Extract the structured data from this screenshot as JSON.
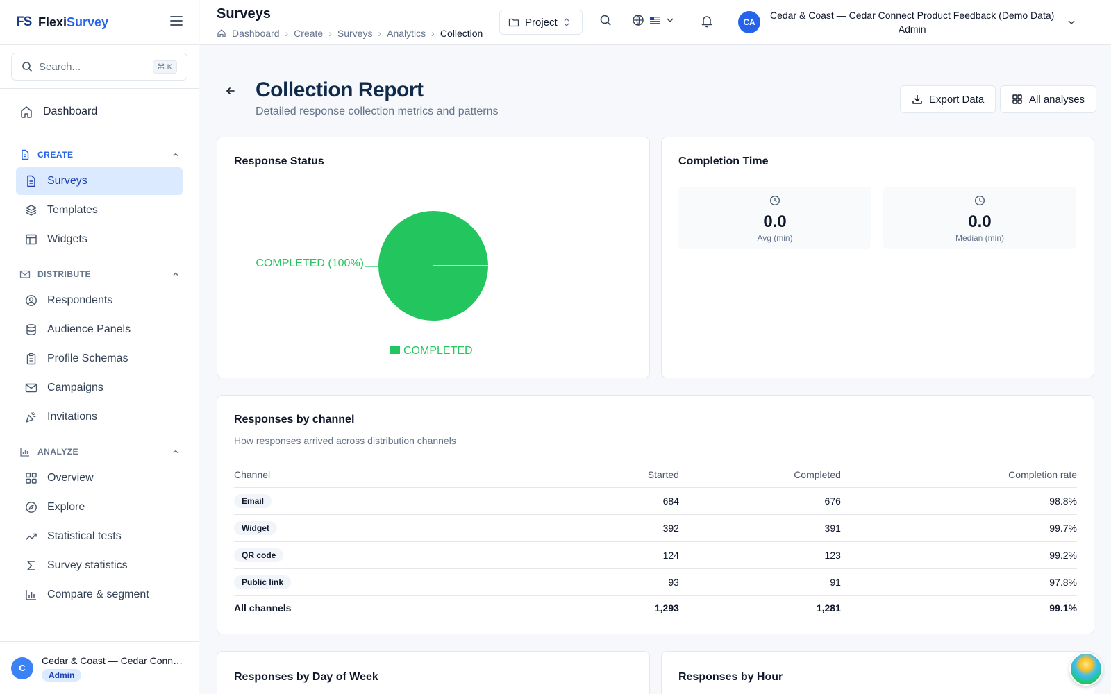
{
  "brand": {
    "logo": "FS",
    "name_a": "Flexi",
    "name_b": "Survey"
  },
  "search": {
    "placeholder": "Search...",
    "shortcut": "⌘ K"
  },
  "sidebar": {
    "dashboard": "Dashboard",
    "sections": [
      {
        "title": "CREATE",
        "items": [
          "Surveys",
          "Templates",
          "Widgets"
        ]
      },
      {
        "title": "DISTRIBUTE",
        "items": [
          "Respondents",
          "Audience Panels",
          "Profile Schemas",
          "Campaigns",
          "Invitations"
        ]
      },
      {
        "title": "ANALYZE",
        "items": [
          "Overview",
          "Explore",
          "Statistical tests",
          "Survey statistics",
          "Compare & segment"
        ]
      }
    ],
    "footer": {
      "avatar": "C",
      "name": "Cedar & Coast — Cedar Connect Product Feedback (Demo Data)",
      "role": "Admin"
    }
  },
  "topbar": {
    "title": "Surveys",
    "breadcrumbs": [
      "Dashboard",
      "Create",
      "Surveys",
      "Analytics",
      "Collection"
    ],
    "project_label": "Project",
    "account": {
      "avatar": "CA",
      "line1": "Cedar & Coast — Cedar Connect Product Feedback (Demo Data)",
      "line2": "Admin"
    }
  },
  "page": {
    "title": "Collection Report",
    "subtitle": "Detailed response collection metrics and patterns",
    "export_label": "Export Data",
    "all_analyses_label": "All analyses"
  },
  "response_status": {
    "title": "Response Status",
    "slice_label": "COMPLETED (100%)",
    "legend": "COMPLETED",
    "color": "#22c55e"
  },
  "chart_data": {
    "type": "pie",
    "categories": [
      "COMPLETED"
    ],
    "values": [
      100
    ],
    "title": "Response Status"
  },
  "completion_time": {
    "title": "Completion Time",
    "avg": {
      "value": "0.0",
      "label": "Avg (min)"
    },
    "median": {
      "value": "0.0",
      "label": "Median (min)"
    }
  },
  "channels": {
    "title": "Responses by channel",
    "subtitle": "How responses arrived across distribution channels",
    "headers": [
      "Channel",
      "Started",
      "Completed",
      "Completion rate"
    ],
    "rows": [
      {
        "channel": "Email",
        "started": "684",
        "completed": "676",
        "rate": "98.8%"
      },
      {
        "channel": "Widget",
        "started": "392",
        "completed": "391",
        "rate": "99.7%"
      },
      {
        "channel": "QR code",
        "started": "124",
        "completed": "123",
        "rate": "99.2%"
      },
      {
        "channel": "Public link",
        "started": "93",
        "completed": "91",
        "rate": "97.8%"
      }
    ],
    "total": {
      "channel": "All channels",
      "started": "1,293",
      "completed": "1,281",
      "rate": "99.1%"
    }
  },
  "bottom_cards": {
    "day_of_week": "Responses by Day of Week",
    "hour": "Responses by Hour"
  }
}
